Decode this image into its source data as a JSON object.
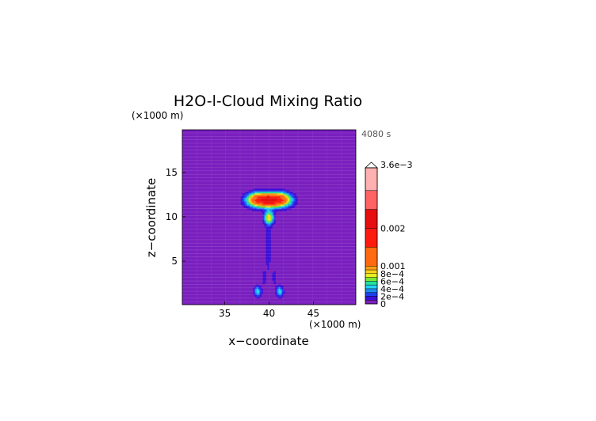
{
  "chart_data": {
    "type": "heatmap",
    "title": "H2O-l-Cloud Mixing Ratio",
    "time_label": "4080 s",
    "xlabel": "x−coordinate",
    "ylabel": "z−coordinate",
    "x_unit": "(×1000 m)",
    "y_unit": "(×1000 m)",
    "xlim": [
      30.2,
      49.8
    ],
    "ylim": [
      0.1,
      19.8
    ],
    "x_ticks": [
      {
        "value": 35,
        "label": "35"
      },
      {
        "value": 40,
        "label": "40"
      },
      {
        "value": 45,
        "label": "45"
      }
    ],
    "y_ticks": [
      {
        "value": 5,
        "label": "5"
      },
      {
        "value": 10,
        "label": "10"
      },
      {
        "value": 15,
        "label": "15"
      }
    ],
    "background_color": "#7a1fbf",
    "colorbar": {
      "min": 0,
      "max": 0.0036,
      "tick_labels": [
        {
          "value": 0,
          "label": "0"
        },
        {
          "value": 0.0002,
          "label": "2e−4"
        },
        {
          "value": 0.0004,
          "label": "4e−4"
        },
        {
          "value": 0.0006,
          "label": "6e−4"
        },
        {
          "value": 0.0008,
          "label": "8e−4"
        },
        {
          "value": 0.001,
          "label": "0.001"
        },
        {
          "value": 0.002,
          "label": "0.002"
        },
        {
          "value": 0.0036,
          "label": "3.6e−3"
        }
      ],
      "segments": [
        {
          "from": 0,
          "to": 0.0001,
          "color": "#7a1fbf"
        },
        {
          "from": 0.0001,
          "to": 0.0002,
          "color": "#3a0fd8"
        },
        {
          "from": 0.0002,
          "to": 0.0003,
          "color": "#1f3ff0"
        },
        {
          "from": 0.0003,
          "to": 0.0004,
          "color": "#1f8cf2"
        },
        {
          "from": 0.0004,
          "to": 0.0005,
          "color": "#22d2f0"
        },
        {
          "from": 0.0005,
          "to": 0.0006,
          "color": "#22e0a0"
        },
        {
          "from": 0.0006,
          "to": 0.0007,
          "color": "#7ae832"
        },
        {
          "from": 0.0007,
          "to": 0.0008,
          "color": "#e6f01e"
        },
        {
          "from": 0.0008,
          "to": 0.0009,
          "color": "#ffd21a"
        },
        {
          "from": 0.0009,
          "to": 0.001,
          "color": "#ff9e14"
        },
        {
          "from": 0.001,
          "to": 0.0015,
          "color": "#ff6a10"
        },
        {
          "from": 0.0015,
          "to": 0.002,
          "color": "#ff1a10"
        },
        {
          "from": 0.002,
          "to": 0.0025,
          "color": "#e60e0e"
        },
        {
          "from": 0.0025,
          "to": 0.003,
          "color": "#ff6464"
        },
        {
          "from": 0.003,
          "to": 0.0036,
          "color": "#ffb0b0"
        }
      ]
    },
    "features": [
      {
        "name": "anvil-left-lobe",
        "x": 38.9,
        "z": 11.9,
        "sx": 1.3,
        "sz": 0.75,
        "peak": 0.0016
      },
      {
        "name": "anvil-right-lobe",
        "x": 41.1,
        "z": 11.9,
        "sx": 1.3,
        "sz": 0.75,
        "peak": 0.0016
      },
      {
        "name": "anvil-center",
        "x": 40.0,
        "z": 11.9,
        "sx": 0.9,
        "sz": 0.55,
        "peak": 0.0009
      },
      {
        "name": "upper-core",
        "x": 40.0,
        "z": 9.9,
        "sx": 0.55,
        "sz": 0.75,
        "peak": 0.0008
      },
      {
        "name": "column",
        "x": 39.9,
        "z": 6.5,
        "sx": 0.35,
        "sz": 3.2,
        "peak": 0.00017
      },
      {
        "name": "foot-left",
        "x": 38.7,
        "z": 1.6,
        "sx": 0.4,
        "sz": 0.6,
        "peak": 0.0005
      },
      {
        "name": "foot-right",
        "x": 41.2,
        "z": 1.6,
        "sx": 0.4,
        "sz": 0.6,
        "peak": 0.0005
      },
      {
        "name": "leg-left",
        "x": 39.4,
        "z": 3.2,
        "sx": 0.3,
        "sz": 1.0,
        "peak": 0.00015
      },
      {
        "name": "leg-right",
        "x": 40.6,
        "z": 3.2,
        "sx": 0.3,
        "sz": 1.0,
        "peak": 0.00015
      }
    ]
  }
}
